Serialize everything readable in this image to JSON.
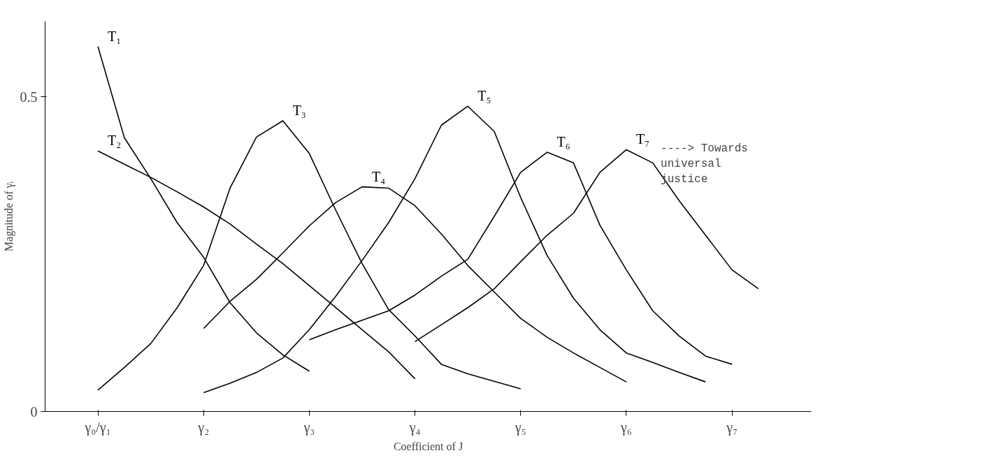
{
  "chart_data": {
    "type": "line",
    "xlabel": "Coefficient of J",
    "ylabel": "Magnitude of γᵢ",
    "categories": [
      "γ₀/γ₁",
      null,
      null,
      null,
      "γ₂",
      null,
      null,
      null,
      "γ₃",
      null,
      null,
      null,
      "γ₄",
      null,
      null,
      null,
      "γ₅",
      null,
      null,
      null,
      "γ₆",
      null,
      null,
      null,
      "γ₇",
      null
    ],
    "ylim": [
      0,
      0.62
    ],
    "yticks": [
      0,
      {
        "value": 0.5,
        "label": "0.5"
      }
    ],
    "grid": false,
    "legend": false,
    "marker": "none",
    "line_style": "solid",
    "annotations": [
      "----> Towards universal justice"
    ],
    "series": [
      {
        "name": "T₁",
        "color": "#000000",
        "values": [
          0.58,
          0.435,
          0.37,
          0.3,
          0.245,
          0.173,
          0.125,
          0.09,
          0.064,
          null,
          null,
          null,
          null,
          null,
          null,
          null,
          null,
          null,
          null,
          null,
          null,
          null,
          null,
          null,
          null,
          null
        ]
      },
      {
        "name": "T₂",
        "color": "#000000",
        "values": [
          0.414,
          0.393,
          0.372,
          0.349,
          0.325,
          0.298,
          0.266,
          0.235,
          0.2,
          0.165,
          0.13,
          0.095,
          0.052,
          null,
          null,
          null,
          null,
          null,
          null,
          null,
          null,
          null,
          null,
          null,
          null,
          null
        ]
      },
      {
        "name": "T₃",
        "color": "#000000",
        "values": [
          0.034,
          0.07,
          0.108,
          0.165,
          0.232,
          0.355,
          0.436,
          0.462,
          0.41,
          0.32,
          0.235,
          0.162,
          0.12,
          0.075,
          0.06,
          0.048,
          0.036,
          null,
          null,
          null,
          null,
          null,
          null,
          null,
          null,
          null
        ]
      },
      {
        "name": "T₄",
        "color": "#000000",
        "values": [
          null,
          null,
          null,
          null,
          0.132,
          0.175,
          0.21,
          0.252,
          0.295,
          0.332,
          0.357,
          0.355,
          0.327,
          0.282,
          0.232,
          0.19,
          0.148,
          0.118,
          0.093,
          0.07,
          0.047,
          null,
          null,
          null,
          null,
          null
        ]
      },
      {
        "name": "T₅",
        "color": "#000000",
        "values": [
          null,
          null,
          null,
          null,
          0.03,
          0.045,
          0.062,
          0.085,
          0.13,
          0.183,
          0.24,
          0.3,
          0.37,
          0.455,
          0.485,
          0.445,
          0.34,
          0.248,
          0.18,
          0.13,
          0.093,
          0.078,
          0.062,
          0.047,
          null,
          null
        ]
      },
      {
        "name": "T₆",
        "color": "#000000",
        "values": [
          null,
          null,
          null,
          null,
          null,
          null,
          null,
          null,
          0.114,
          0.13,
          0.145,
          0.16,
          0.185,
          0.215,
          0.242,
          0.31,
          0.38,
          0.412,
          0.395,
          0.296,
          0.225,
          0.16,
          0.12,
          0.088,
          0.075,
          null
        ]
      },
      {
        "name": "T₇",
        "color": "#000000",
        "values": [
          null,
          null,
          null,
          null,
          null,
          null,
          null,
          null,
          null,
          null,
          null,
          null,
          0.111,
          0.138,
          0.165,
          0.195,
          0.238,
          0.28,
          0.315,
          0.38,
          0.416,
          0.395,
          0.335,
          0.28,
          0.225,
          0.195
        ]
      }
    ]
  }
}
